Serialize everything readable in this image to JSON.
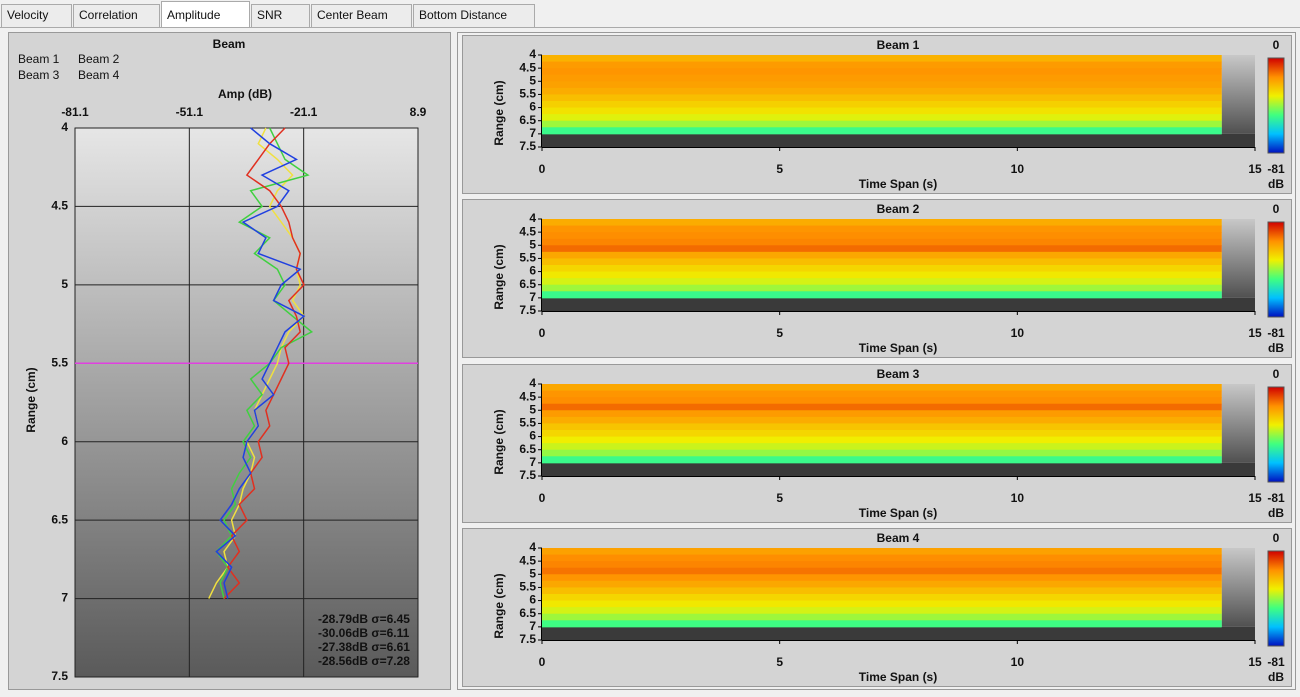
{
  "tabs": [
    "Velocity",
    "Correlation",
    "Amplitude",
    "SNR",
    "Center Beam",
    "Bottom Distance"
  ],
  "active_tab": 2,
  "chart_data": [
    {
      "type": "profile",
      "title": "Beam",
      "x_label": "Amp (dB)",
      "y_label": "Range (cm)",
      "xlim": [
        -81.1,
        8.9
      ],
      "xticks": [
        -81.1,
        -51.1,
        -21.1,
        8.9
      ],
      "ylim": [
        4,
        7.5
      ],
      "yticks": [
        4,
        4.5,
        5,
        5.5,
        6,
        6.5,
        7,
        7.5
      ],
      "grid": true,
      "reference_line": 5.5,
      "reference_color": "#e040e0",
      "ranges": [
        4.0,
        4.1,
        4.2,
        4.3,
        4.4,
        4.5,
        4.6,
        4.7,
        4.8,
        4.9,
        5.0,
        5.1,
        5.2,
        5.3,
        5.4,
        5.5,
        5.6,
        5.7,
        5.8,
        5.9,
        6.0,
        6.1,
        6.2,
        6.3,
        6.4,
        6.5,
        6.6,
        6.7,
        6.8,
        6.9,
        7.0
      ],
      "series": [
        {
          "name": "Beam 1",
          "color": "#f0e040",
          "values": [
            -31,
            -33,
            -28,
            -24,
            -28,
            -30,
            -27,
            -24,
            -22,
            -23,
            -22,
            -24,
            -21,
            -25,
            -27,
            -28,
            -30,
            -32,
            -34,
            -33,
            -36,
            -34,
            -35,
            -37,
            -38,
            -40,
            -39,
            -42,
            -41,
            -44,
            -46
          ]
        },
        {
          "name": "Beam 3",
          "color": "#40d040",
          "values": [
            -30,
            -28,
            -26,
            -20,
            -35,
            -32,
            -38,
            -30,
            -34,
            -28,
            -26,
            -29,
            -24,
            -19,
            -27,
            -30,
            -35,
            -32,
            -36,
            -34,
            -37,
            -35,
            -38,
            -40,
            -39,
            -42,
            -40,
            -44,
            -41,
            -43,
            -42
          ]
        },
        {
          "name": "Beam 2",
          "color": "#e03020",
          "values": [
            -26,
            -30,
            -33,
            -36,
            -30,
            -27,
            -25,
            -24,
            -22,
            -23,
            -21,
            -25,
            -23,
            -22,
            -26,
            -25,
            -27,
            -29,
            -31,
            -30,
            -33,
            -32,
            -35,
            -34,
            -38,
            -36,
            -40,
            -38,
            -41,
            -38,
            -42
          ]
        },
        {
          "name": "Beam 4",
          "color": "#2040e0",
          "values": [
            -35,
            -30,
            -23,
            -32,
            -25,
            -28,
            -37,
            -31,
            -33,
            -22,
            -27,
            -29,
            -21,
            -26,
            -28,
            -30,
            -32,
            -29,
            -34,
            -33,
            -36,
            -37,
            -35,
            -38,
            -40,
            -43,
            -39,
            -44,
            -40,
            -42,
            -41
          ]
        }
      ],
      "stats": [
        {
          "text": "-28.79dB σ=6.45",
          "color": "#2040e0"
        },
        {
          "text": "-30.06dB σ=6.11",
          "color": "#40d040"
        },
        {
          "text": "-27.38dB σ=6.61",
          "color": "#e03020"
        },
        {
          "text": "-28.56dB σ=7.28",
          "color": "#f0e040"
        }
      ]
    },
    {
      "type": "heatmap",
      "title": "Beam 1",
      "x_label": "Time Span (s)",
      "y_label": "Range (cm)",
      "xlim": [
        0,
        15
      ],
      "xticks": [
        0,
        5,
        10,
        15
      ],
      "ylim": [
        4,
        7.5
      ],
      "yticks": [
        4,
        4.5,
        5,
        5.5,
        6,
        6.5,
        7,
        7.5
      ],
      "data_xlim": [
        0,
        14.3
      ],
      "range_bins": [
        4.0,
        4.25,
        4.5,
        4.75,
        5.0,
        5.25,
        5.5,
        5.75,
        6.0,
        6.25,
        6.5,
        6.75,
        7.0
      ],
      "values": [
        -22,
        -18,
        -17,
        -18,
        -19,
        -21,
        -24,
        -27,
        -30,
        -34,
        -40,
        -50
      ],
      "clim": [
        -81,
        0
      ],
      "colorbar_ticks": [
        0,
        -81
      ],
      "colorbar_unit": "dB",
      "colormap": [
        "#0010c0",
        "#00c0ff",
        "#40ff80",
        "#f0f000",
        "#ff9000",
        "#d00000"
      ]
    },
    {
      "type": "heatmap",
      "title": "Beam 2",
      "x_label": "Time Span (s)",
      "y_label": "Range (cm)",
      "xlim": [
        0,
        15
      ],
      "xticks": [
        0,
        5,
        10,
        15
      ],
      "ylim": [
        4,
        7.5
      ],
      "yticks": [
        4,
        4.5,
        5,
        5.5,
        6,
        6.5,
        7,
        7.5
      ],
      "data_xlim": [
        0,
        14.3
      ],
      "range_bins": [
        4.0,
        4.25,
        4.5,
        4.75,
        5.0,
        5.25,
        5.5,
        5.75,
        6.0,
        6.25,
        6.5,
        6.75,
        7.0
      ],
      "values": [
        -21,
        -17,
        -16,
        -15,
        -12,
        -20,
        -24,
        -28,
        -31,
        -35,
        -40,
        -50
      ],
      "clim": [
        -81,
        0
      ],
      "colorbar_ticks": [
        0,
        -81
      ],
      "colorbar_unit": "dB",
      "colormap": [
        "#0010c0",
        "#00c0ff",
        "#40ff80",
        "#f0f000",
        "#ff9000",
        "#d00000"
      ]
    },
    {
      "type": "heatmap",
      "title": "Beam 3",
      "x_label": "Time Span (s)",
      "y_label": "Range (cm)",
      "xlim": [
        0,
        15
      ],
      "xticks": [
        0,
        5,
        10,
        15
      ],
      "ylim": [
        4,
        7.5
      ],
      "yticks": [
        4,
        4.5,
        5,
        5.5,
        6,
        6.5,
        7,
        7.5
      ],
      "data_xlim": [
        0,
        14.3
      ],
      "range_bins": [
        4.0,
        4.25,
        4.5,
        4.75,
        5.0,
        5.25,
        5.5,
        5.75,
        6.0,
        6.25,
        6.5,
        6.75,
        7.0
      ],
      "values": [
        -20,
        -17,
        -16,
        -12,
        -18,
        -21,
        -25,
        -28,
        -32,
        -36,
        -41,
        -50
      ],
      "clim": [
        -81,
        0
      ],
      "colorbar_ticks": [
        0,
        -81
      ],
      "colorbar_unit": "dB",
      "colormap": [
        "#0010c0",
        "#00c0ff",
        "#40ff80",
        "#f0f000",
        "#ff9000",
        "#d00000"
      ]
    },
    {
      "type": "heatmap",
      "title": "Beam 4",
      "x_label": "Time Span (s)",
      "y_label": "Range (cm)",
      "xlim": [
        0,
        15
      ],
      "xticks": [
        0,
        5,
        10,
        15
      ],
      "ylim": [
        4,
        7.5
      ],
      "yticks": [
        4,
        4.5,
        5,
        5.5,
        6,
        6.5,
        7,
        7.5
      ],
      "data_xlim": [
        0,
        14.3
      ],
      "range_bins": [
        4.0,
        4.25,
        4.5,
        4.75,
        5.0,
        5.25,
        5.5,
        5.75,
        6.0,
        6.25,
        6.5,
        6.75,
        7.0
      ],
      "values": [
        -19,
        -16,
        -15,
        -13,
        -17,
        -20,
        -24,
        -28,
        -31,
        -35,
        -40,
        -49
      ],
      "clim": [
        -81,
        0
      ],
      "colorbar_ticks": [
        0,
        -81
      ],
      "colorbar_unit": "dB",
      "colormap": [
        "#0010c0",
        "#00c0ff",
        "#40ff80",
        "#f0f000",
        "#ff9000",
        "#d00000"
      ]
    }
  ]
}
